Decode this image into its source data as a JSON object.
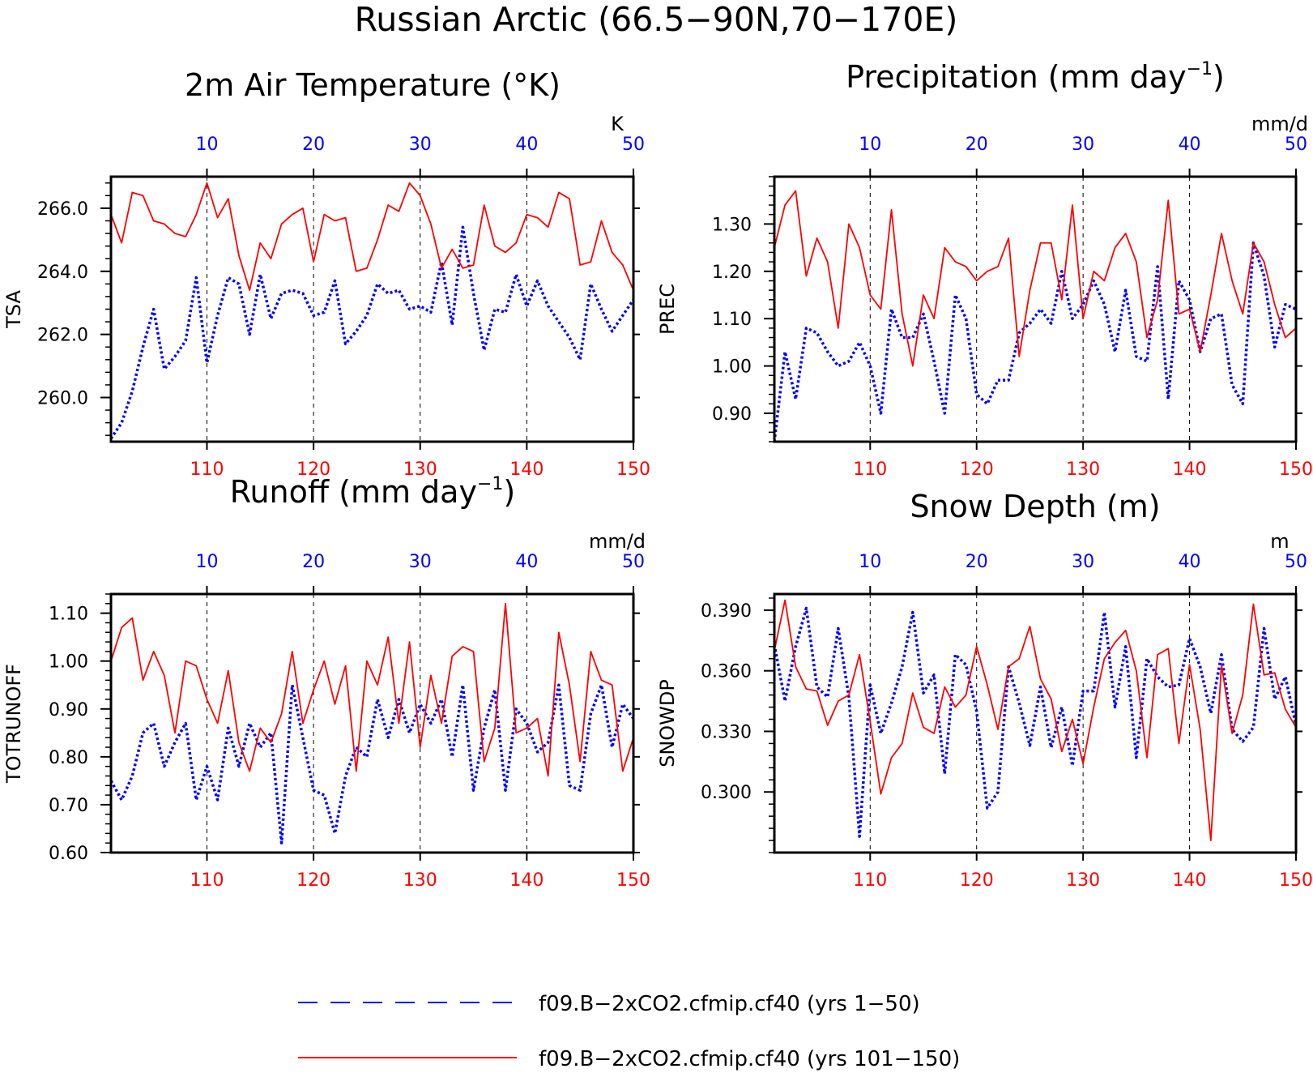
{
  "title": "Russian Arctic (66.5−90N,70−170E)",
  "legend": [
    {
      "label": "f09.B−2xCO2.cfmip.cf40 (yrs 1−50)",
      "color": "#0000ff",
      "style": "dashed"
    },
    {
      "label": "f09.B−2xCO2.cfmip.cf40 (yrs 101−150)",
      "color": "#ff0000",
      "style": "solid"
    }
  ],
  "chart_data": [
    {
      "type": "line",
      "title": "2m Air Temperature (°K)",
      "ylabel": "TSA",
      "units": "K",
      "ylim": [
        258.6,
        267.0
      ],
      "yticks": [
        260.0,
        262.0,
        264.0,
        266.0
      ],
      "ytick_labels": [
        "260.0",
        "262.0",
        "264.0",
        "266.0"
      ],
      "yminor_step": 0.4,
      "x_bottom": [
        101,
        150
      ],
      "x_bottom_ticks": [
        110,
        120,
        130,
        140,
        150
      ],
      "x_top": [
        1,
        50
      ],
      "x_top_ticks": [
        10,
        20,
        30,
        40,
        50
      ],
      "grid_x": [
        110,
        120,
        130,
        140
      ],
      "series": [
        {
          "name": "f09.B−2xCO2.cfmip.cf40 (yrs 1−50)",
          "color": "#0000ff",
          "axis": "top",
          "x_start": 1,
          "values": [
            258.7,
            259.2,
            260.2,
            261.6,
            262.8,
            260.9,
            261.3,
            261.8,
            263.8,
            261.1,
            262.6,
            263.8,
            263.6,
            262.0,
            263.9,
            262.5,
            263.3,
            263.4,
            263.3,
            262.6,
            262.7,
            263.7,
            261.7,
            262.1,
            262.6,
            263.6,
            263.3,
            263.4,
            262.8,
            262.9,
            262.7,
            264.3,
            262.3,
            265.4,
            263.3,
            261.5,
            262.8,
            262.7,
            263.9,
            262.9,
            263.7,
            262.9,
            262.4,
            261.9,
            261.2,
            263.6,
            262.8,
            262.1,
            262.6,
            263.1
          ]
        },
        {
          "name": "f09.B−2xCO2.cfmip.cf40 (yrs 101−150)",
          "color": "#ff0000",
          "axis": "bottom",
          "x_start": 101,
          "values": [
            265.8,
            264.9,
            266.5,
            266.4,
            265.6,
            265.5,
            265.2,
            265.1,
            265.8,
            266.8,
            265.7,
            266.3,
            264.5,
            263.4,
            264.9,
            264.4,
            265.5,
            265.8,
            266.0,
            264.3,
            265.8,
            265.6,
            265.7,
            264.0,
            264.1,
            265.0,
            266.1,
            265.9,
            266.8,
            266.4,
            265.5,
            264.1,
            264.7,
            264.1,
            264.2,
            266.1,
            264.8,
            264.6,
            264.9,
            265.8,
            265.7,
            265.4,
            266.5,
            266.3,
            264.2,
            264.3,
            265.6,
            264.6,
            264.2,
            263.4
          ]
        }
      ]
    },
    {
      "type": "line",
      "title": "Precipitation (mm day",
      "title_sup": "−1",
      "title_end": ")",
      "ylabel": "PREC",
      "units": "mm/d",
      "ylim": [
        0.84,
        1.4
      ],
      "yticks": [
        0.9,
        1.0,
        1.1,
        1.2,
        1.3
      ],
      "ytick_labels": [
        "0.90",
        "1.00",
        "1.10",
        "1.20",
        "1.30"
      ],
      "yminor_step": 0.02,
      "x_bottom": [
        101,
        150
      ],
      "x_bottom_ticks": [
        110,
        120,
        130,
        140,
        150
      ],
      "x_top": [
        1,
        50
      ],
      "x_top_ticks": [
        10,
        20,
        30,
        40,
        50
      ],
      "grid_x": [
        110,
        120,
        130,
        140
      ],
      "series": [
        {
          "name": "f09.B−2xCO2.cfmip.cf40 (yrs 1−50)",
          "color": "#0000ff",
          "axis": "top",
          "x_start": 1,
          "values": [
            0.84,
            1.03,
            0.93,
            1.08,
            1.07,
            1.03,
            1.0,
            1.01,
            1.05,
            1.0,
            0.9,
            1.12,
            1.06,
            1.06,
            1.11,
            1.01,
            0.9,
            1.15,
            1.1,
            0.94,
            0.92,
            0.97,
            0.97,
            1.07,
            1.09,
            1.12,
            1.09,
            1.2,
            1.1,
            1.13,
            1.18,
            1.13,
            1.03,
            1.16,
            1.02,
            1.01,
            1.21,
            0.93,
            1.18,
            1.14,
            1.03,
            1.1,
            1.11,
            0.96,
            0.92,
            1.26,
            1.19,
            1.04,
            1.13,
            1.12
          ]
        },
        {
          "name": "f09.B−2xCO2.cfmip.cf40 (yrs 101−150)",
          "color": "#ff0000",
          "axis": "bottom",
          "x_start": 101,
          "values": [
            1.25,
            1.34,
            1.37,
            1.19,
            1.27,
            1.22,
            1.08,
            1.3,
            1.25,
            1.15,
            1.12,
            1.33,
            1.11,
            1.0,
            1.15,
            1.1,
            1.25,
            1.22,
            1.21,
            1.18,
            1.2,
            1.21,
            1.27,
            1.02,
            1.16,
            1.26,
            1.26,
            1.14,
            1.34,
            1.1,
            1.2,
            1.18,
            1.25,
            1.28,
            1.22,
            1.06,
            1.14,
            1.35,
            1.11,
            1.12,
            1.03,
            1.15,
            1.28,
            1.18,
            1.11,
            1.26,
            1.22,
            1.13,
            1.06,
            1.08
          ]
        }
      ]
    },
    {
      "type": "line",
      "title": "Runoff (mm day",
      "title_sup": "−1",
      "title_end": ")",
      "ylabel": "TOTRUNOFF",
      "units": "mm/d",
      "ylim": [
        0.6,
        1.14
      ],
      "yticks": [
        0.6,
        0.7,
        0.8,
        0.9,
        1.0,
        1.1
      ],
      "ytick_labels": [
        "0.60",
        "0.70",
        "0.80",
        "0.90",
        "1.00",
        "1.10"
      ],
      "yminor_step": 0.02,
      "x_bottom": [
        101,
        150
      ],
      "x_bottom_ticks": [
        110,
        120,
        130,
        140,
        150
      ],
      "x_top": [
        1,
        50
      ],
      "x_top_ticks": [
        10,
        20,
        30,
        40,
        50
      ],
      "grid_x": [
        110,
        120,
        130,
        140
      ],
      "series": [
        {
          "name": "f09.B−2xCO2.cfmip.cf40 (yrs 1−50)",
          "color": "#0000ff",
          "axis": "top",
          "x_start": 1,
          "values": [
            0.75,
            0.71,
            0.76,
            0.85,
            0.87,
            0.78,
            0.83,
            0.87,
            0.71,
            0.78,
            0.71,
            0.86,
            0.78,
            0.87,
            0.82,
            0.85,
            0.62,
            0.95,
            0.84,
            0.73,
            0.72,
            0.64,
            0.76,
            0.82,
            0.8,
            0.92,
            0.84,
            0.92,
            0.85,
            0.91,
            0.87,
            0.92,
            0.8,
            0.95,
            0.73,
            0.86,
            0.94,
            0.73,
            0.9,
            0.87,
            0.81,
            0.83,
            0.95,
            0.74,
            0.73,
            0.89,
            0.95,
            0.82,
            0.91,
            0.88
          ]
        },
        {
          "name": "f09.B−2xCO2.cfmip.cf40 (yrs 101−150)",
          "color": "#ff0000",
          "axis": "bottom",
          "x_start": 101,
          "values": [
            1.0,
            1.07,
            1.09,
            0.96,
            1.02,
            0.97,
            0.85,
            1.0,
            0.99,
            0.92,
            0.87,
            0.98,
            0.83,
            0.77,
            0.86,
            0.83,
            0.89,
            1.02,
            0.87,
            0.94,
            1.0,
            0.91,
            0.99,
            0.77,
            1.0,
            0.95,
            1.05,
            0.87,
            1.04,
            0.82,
            0.97,
            0.87,
            1.01,
            1.03,
            1.02,
            0.79,
            0.86,
            1.12,
            0.85,
            0.86,
            0.88,
            0.76,
            1.06,
            0.95,
            0.79,
            1.02,
            0.96,
            0.95,
            0.77,
            0.84
          ]
        }
      ]
    },
    {
      "type": "line",
      "title": "Snow Depth (m)",
      "ylabel": "SNOWDP",
      "units": "m",
      "ylim": [
        0.27,
        0.398
      ],
      "yticks": [
        0.3,
        0.33,
        0.36,
        0.39
      ],
      "ytick_labels": [
        "0.300",
        "0.330",
        "0.360",
        "0.390"
      ],
      "yminor_step": 0.006,
      "x_bottom": [
        101,
        150
      ],
      "x_bottom_ticks": [
        110,
        120,
        130,
        140,
        150
      ],
      "x_top": [
        1,
        50
      ],
      "x_top_ticks": [
        10,
        20,
        30,
        40,
        50
      ],
      "grid_x": [
        110,
        120,
        130,
        140
      ],
      "series": [
        {
          "name": "f09.B−2xCO2.cfmip.cf40 (yrs 1−50)",
          "color": "#0000ff",
          "axis": "top",
          "x_start": 1,
          "values": [
            0.373,
            0.345,
            0.372,
            0.391,
            0.352,
            0.347,
            0.381,
            0.347,
            0.278,
            0.353,
            0.329,
            0.344,
            0.362,
            0.389,
            0.349,
            0.358,
            0.309,
            0.368,
            0.363,
            0.34,
            0.292,
            0.3,
            0.362,
            0.344,
            0.323,
            0.352,
            0.322,
            0.342,
            0.313,
            0.35,
            0.35,
            0.389,
            0.342,
            0.372,
            0.317,
            0.366,
            0.357,
            0.352,
            0.353,
            0.376,
            0.362,
            0.339,
            0.368,
            0.331,
            0.325,
            0.332,
            0.381,
            0.346,
            0.357,
            0.333
          ]
        },
        {
          "name": "f09.B−2xCO2.cfmip.cf40 (yrs 101−150)",
          "color": "#ff0000",
          "axis": "bottom",
          "x_start": 101,
          "values": [
            0.37,
            0.395,
            0.362,
            0.351,
            0.35,
            0.333,
            0.345,
            0.348,
            0.368,
            0.335,
            0.299,
            0.317,
            0.324,
            0.349,
            0.332,
            0.329,
            0.352,
            0.342,
            0.348,
            0.372,
            0.353,
            0.331,
            0.362,
            0.366,
            0.382,
            0.356,
            0.346,
            0.32,
            0.336,
            0.314,
            0.342,
            0.366,
            0.374,
            0.38,
            0.36,
            0.317,
            0.368,
            0.371,
            0.324,
            0.363,
            0.331,
            0.276,
            0.363,
            0.329,
            0.348,
            0.393,
            0.358,
            0.359,
            0.341,
            0.332
          ]
        }
      ]
    }
  ]
}
